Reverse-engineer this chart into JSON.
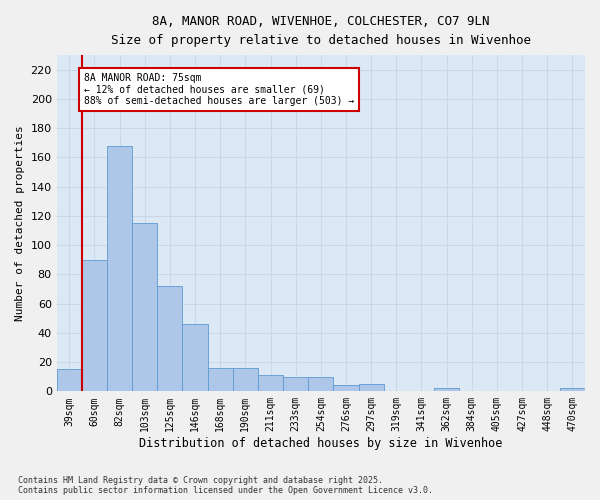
{
  "title_line1": "8A, MANOR ROAD, WIVENHOE, COLCHESTER, CO7 9LN",
  "title_line2": "Size of property relative to detached houses in Wivenhoe",
  "xlabel": "Distribution of detached houses by size in Wivenhoe",
  "ylabel": "Number of detached properties",
  "bin_labels": [
    "39sqm",
    "60sqm",
    "82sqm",
    "103sqm",
    "125sqm",
    "146sqm",
    "168sqm",
    "190sqm",
    "211sqm",
    "233sqm",
    "254sqm",
    "276sqm",
    "297sqm",
    "319sqm",
    "341sqm",
    "362sqm",
    "384sqm",
    "405sqm",
    "427sqm",
    "448sqm",
    "470sqm"
  ],
  "bar_values": [
    15,
    90,
    168,
    115,
    72,
    46,
    16,
    16,
    11,
    10,
    10,
    4,
    5,
    0,
    0,
    2,
    0,
    0,
    0,
    0,
    2
  ],
  "bar_color": "#aec6e8",
  "bar_edge_color": "#5b9bd5",
  "grid_color": "#c8d8e8",
  "background_color": "#dde8f5",
  "fig_background_color": "#f0f0f0",
  "red_line_color": "#cc0000",
  "annotation_text": "8A MANOR ROAD: 75sqm\n← 12% of detached houses are smaller (69)\n88% of semi-detached houses are larger (503) →",
  "annotation_box_color": "#ffffff",
  "annotation_box_edge": "#cc0000",
  "ylim": [
    0,
    230
  ],
  "yticks": [
    0,
    20,
    40,
    60,
    80,
    100,
    120,
    140,
    160,
    180,
    200,
    220
  ],
  "footnote": "Contains HM Land Registry data © Crown copyright and database right 2025.\nContains public sector information licensed under the Open Government Licence v3.0."
}
